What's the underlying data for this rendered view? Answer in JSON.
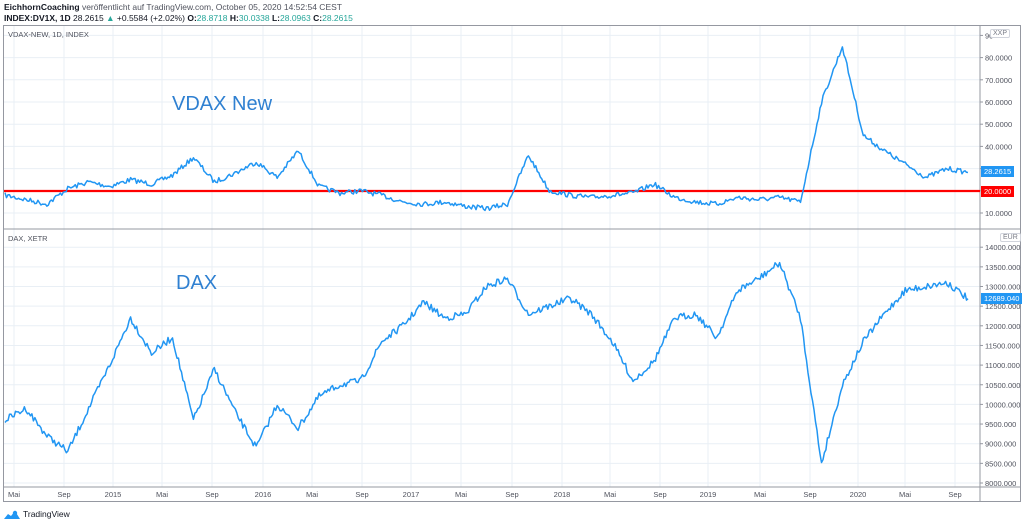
{
  "header": {
    "author": "EichhornCoaching",
    "published": "veröffentlicht auf TradingView.com, October 05, 2020 14:52:54 CEST",
    "symbol": "INDEX:DV1X, 1D",
    "last": "28.2615",
    "change": "+0.5584 (+2.02%)",
    "o_label": "O:",
    "o": "28.8718",
    "h_label": "H:",
    "h": "30.0338",
    "l_label": "L:",
    "l": "28.0963",
    "c_label": "C:",
    "c": "28.2615"
  },
  "top_pane": {
    "legend": "VDAX-NEW, 1D, INDEX",
    "annotation": "VDAX New",
    "unit": "XXP",
    "price_tag": "28.2615",
    "hline_tag": "20.0000"
  },
  "bottom_pane": {
    "legend": "DAX, XETR",
    "annotation": "DAX",
    "unit": "EUR",
    "price_tag": "12689.040"
  },
  "footer": {
    "brand": "TradingView"
  },
  "colors": {
    "line": "#2196f3",
    "hline": "#ff0000",
    "annotation": "#2f80d1",
    "up": "#26a69a"
  },
  "chart_data": [
    {
      "type": "line",
      "title": "VDAX-NEW, 1D, INDEX",
      "annotation": "VDAX New",
      "ylabel": "XXP",
      "yticks": [
        "10.0000",
        "20.0000",
        "30.0000",
        "40.0000",
        "50.0000",
        "60.0000",
        "70.0000",
        "80.0000",
        "90"
      ],
      "ylim": [
        5,
        92
      ],
      "xticks": [
        "Mai",
        "Sep",
        "2015",
        "Mai",
        "Sep",
        "2016",
        "Mai",
        "Sep",
        "2017",
        "Mai",
        "Sep",
        "2018",
        "Mai",
        "Sep",
        "2019",
        "Mai",
        "Sep",
        "2020",
        "Mai",
        "Sep"
      ],
      "horizontal_line": 20,
      "last_value": 28.2615,
      "x": [
        "2014-04",
        "2014-06",
        "2014-08",
        "2014-10",
        "2014-12",
        "2015-02",
        "2015-04",
        "2015-06",
        "2015-08",
        "2015-09",
        "2015-11",
        "2016-01",
        "2016-02",
        "2016-04",
        "2016-06",
        "2016-07",
        "2016-09",
        "2016-11",
        "2017-01",
        "2017-03",
        "2017-05",
        "2017-07",
        "2017-09",
        "2017-11",
        "2018-01",
        "2018-02",
        "2018-04",
        "2018-06",
        "2018-08",
        "2018-10",
        "2018-12",
        "2019-02",
        "2019-04",
        "2019-06",
        "2019-08",
        "2019-10",
        "2019-12",
        "2020-02",
        "2020-03",
        "2020-03b",
        "2020-04",
        "2020-05",
        "2020-06",
        "2020-07",
        "2020-08",
        "2020-09",
        "2020-10"
      ],
      "values": [
        18,
        16,
        14,
        21,
        24,
        22,
        25,
        23,
        27,
        35,
        24,
        28,
        33,
        26,
        38,
        22,
        19,
        20,
        18,
        15,
        14,
        15,
        13,
        12,
        14,
        36,
        20,
        18,
        17,
        18,
        19,
        23,
        17,
        15,
        14,
        17,
        16,
        17,
        15,
        60,
        85,
        45,
        38,
        32,
        26,
        30,
        28.26
      ]
    },
    {
      "type": "line",
      "title": "DAX, XETR",
      "annotation": "DAX",
      "ylabel": "EUR",
      "yticks": [
        "8000.000",
        "8500.000",
        "9000.000",
        "9500.000",
        "10000.000",
        "10500.000",
        "11000.000",
        "11500.000",
        "12000.000",
        "12500.000",
        "13000.000",
        "13500.000",
        "14000.000"
      ],
      "ylim": [
        8000,
        14100
      ],
      "xticks": [
        "Mai",
        "Sep",
        "2015",
        "Mai",
        "Sep",
        "2016",
        "Mai",
        "Sep",
        "2017",
        "Mai",
        "Sep",
        "2018",
        "Mai",
        "Sep",
        "2019",
        "Mai",
        "Sep",
        "2020",
        "Mai",
        "Sep"
      ],
      "last_value": 12689.04,
      "x": [
        "2014-04",
        "2014-06",
        "2014-08",
        "2014-10",
        "2014-12",
        "2015-02",
        "2015-04",
        "2015-06",
        "2015-08",
        "2015-09",
        "2015-11",
        "2016-01",
        "2016-02",
        "2016-04",
        "2016-06",
        "2016-07",
        "2016-09",
        "2016-11",
        "2017-01",
        "2017-03",
        "2017-05",
        "2017-07",
        "2017-09",
        "2017-11",
        "2018-01",
        "2018-02",
        "2018-04",
        "2018-06",
        "2018-08",
        "2018-10",
        "2018-12",
        "2019-02",
        "2019-04",
        "2019-06",
        "2019-08",
        "2019-10",
        "2019-12",
        "2020-02",
        "2020-03",
        "2020-03b",
        "2020-04",
        "2020-05",
        "2020-06",
        "2020-07",
        "2020-08",
        "2020-09",
        "2020-10"
      ],
      "values": [
        9600,
        9900,
        9200,
        8800,
        9900,
        11000,
        12200,
        11300,
        11700,
        9600,
        10900,
        9800,
        8900,
        10000,
        9400,
        10200,
        10500,
        10600,
        11600,
        12000,
        12600,
        12200,
        12300,
        13000,
        13200,
        12300,
        12500,
        12700,
        12300,
        11600,
        10600,
        11100,
        12200,
        12300,
        11700,
        12900,
        13200,
        13600,
        12200,
        8500,
        10500,
        11600,
        12300,
        12900,
        13000,
        13100,
        12689
      ]
    }
  ]
}
